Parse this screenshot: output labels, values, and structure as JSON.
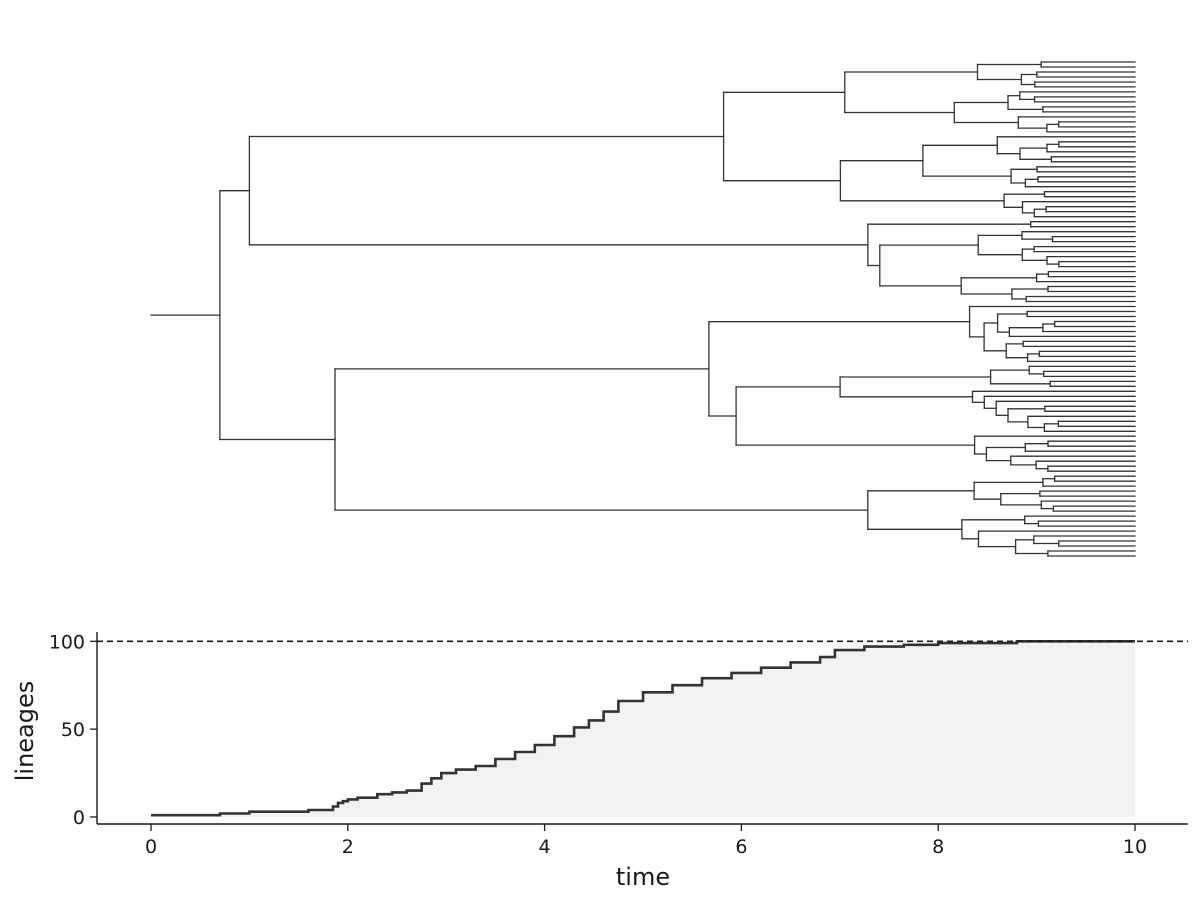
{
  "chart_data": [
    {
      "type": "tree",
      "orientation": "left-to-right",
      "tip_count": 100,
      "tip_time": 10,
      "root_edge_start_time": 0,
      "first_split_time": 0.7,
      "line_color": "#333333"
    },
    {
      "type": "area",
      "title": "",
      "xlabel": "time",
      "ylabel": "lineages",
      "xlim": [
        -0.55,
        10.55
      ],
      "ylim": [
        -5,
        105
      ],
      "xticks": [
        0,
        2,
        4,
        6,
        8,
        10
      ],
      "yticks": [
        0,
        50,
        100
      ],
      "xtick_labels": [
        "0",
        "2",
        "4",
        "6",
        "8",
        "10"
      ],
      "ytick_labels": [
        "0",
        "50",
        "100"
      ],
      "reference_line": {
        "y": 100,
        "style": "dashed",
        "color": "#1a1a1a"
      },
      "grid": false,
      "legend": "none",
      "fill_color": "#f2f2f2",
      "line_color": "#333333",
      "x": [
        0,
        0.7,
        1.0,
        1.6,
        1.85,
        1.9,
        1.95,
        2.0,
        2.1,
        2.3,
        2.45,
        2.6,
        2.75,
        2.85,
        2.95,
        3.1,
        3.3,
        3.5,
        3.7,
        3.9,
        4.1,
        4.3,
        4.45,
        4.6,
        4.75,
        5.0,
        5.3,
        5.6,
        5.9,
        6.2,
        6.5,
        6.8,
        6.95,
        7.25,
        7.65,
        8.0,
        8.8,
        10.0
      ],
      "y": [
        1,
        2,
        3,
        4,
        6,
        8,
        9,
        10,
        11,
        13,
        14,
        15,
        19,
        22,
        25,
        27,
        29,
        33,
        37,
        41,
        46,
        51,
        55,
        60,
        66,
        71,
        75,
        79,
        82,
        85,
        88,
        91,
        95,
        97,
        98,
        99,
        100,
        100
      ]
    }
  ]
}
